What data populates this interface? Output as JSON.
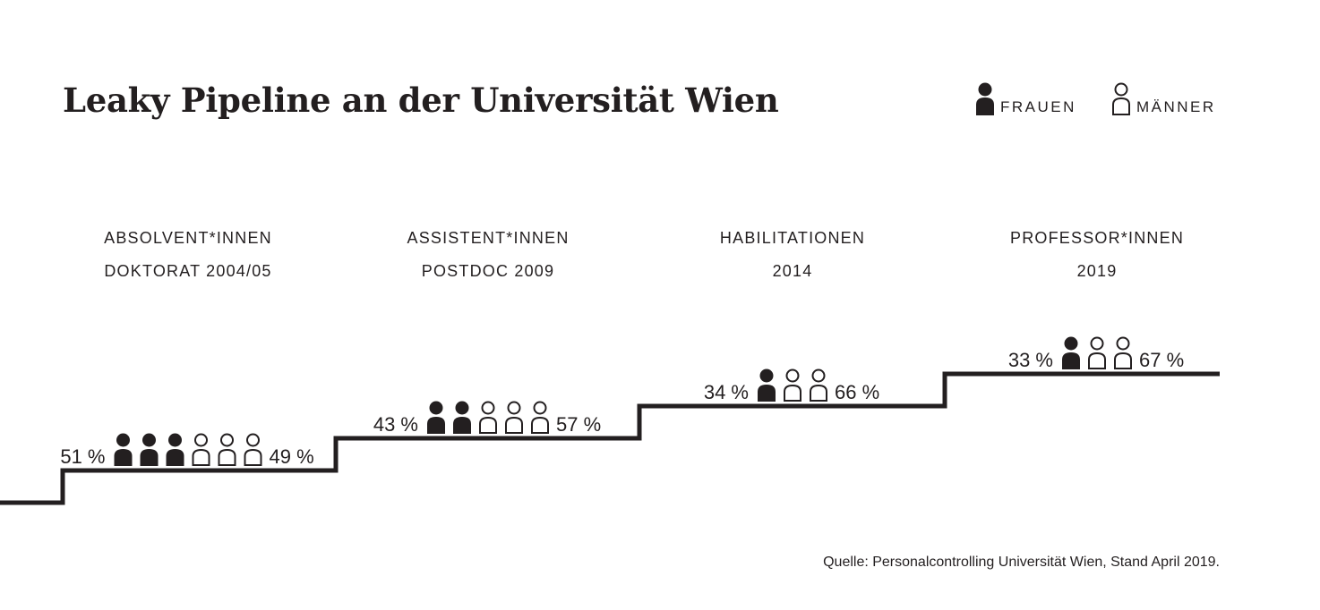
{
  "chart_data": {
    "type": "pictograph",
    "title": "Leaky Pipeline an der Universität Wien",
    "legend": {
      "placement": "top-right",
      "entries": [
        {
          "label": "FRAUEN",
          "icon": "filled-person-icon",
          "color": "#231f20"
        },
        {
          "label": "MÄNNER",
          "icon": "outline-person-icon",
          "color": "#231f20"
        }
      ]
    },
    "series_order": [
      "Frauen",
      "Männer"
    ],
    "categories": [
      {
        "label_line1": "ABSOLVENT*INNEN",
        "label_line2": "DOKTORAT 2004/05",
        "women_pct": 51,
        "men_pct": 49,
        "women_label": "51 %",
        "men_label": "49 %",
        "women_icons": 3,
        "men_icons": 3
      },
      {
        "label_line1": "ASSISTENT*INNEN",
        "label_line2": "POSTDOC 2009",
        "women_pct": 43,
        "men_pct": 57,
        "women_label": "43 %",
        "men_label": "57 %",
        "women_icons": 2,
        "men_icons": 3
      },
      {
        "label_line1": "HABILITATIONEN",
        "label_line2": "2014",
        "women_pct": 34,
        "men_pct": 66,
        "women_label": "34 %",
        "men_label": "66 %",
        "women_icons": 1,
        "men_icons": 2
      },
      {
        "label_line1": "PROFESSOR*INNEN",
        "label_line2": "2019",
        "women_pct": 33,
        "men_pct": 67,
        "women_label": "33 %",
        "men_label": "67 %",
        "women_icons": 1,
        "men_icons": 2
      }
    ],
    "grid": false
  },
  "source": "Quelle: Personalcontrolling Universität Wien, Stand April 2019.",
  "colors": {
    "ink": "#231f20",
    "background": "#ffffff"
  }
}
